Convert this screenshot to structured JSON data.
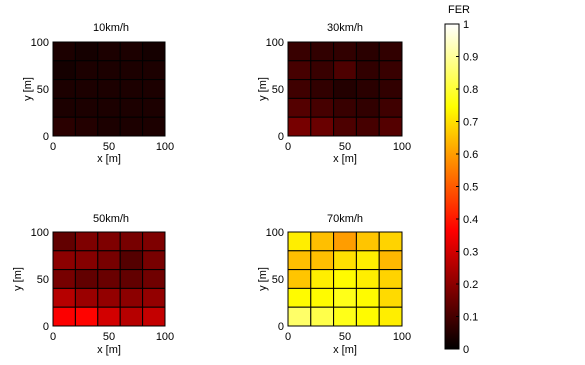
{
  "chart_data": [
    {
      "type": "heatmap",
      "title": "10km/h",
      "xlabel": "x [m]",
      "ylabel": "y [m]",
      "xlim": [
        0,
        100
      ],
      "ylim": [
        0,
        100
      ],
      "xticks": [
        "0",
        "50",
        "100"
      ],
      "yticks": [
        "0",
        "50",
        "100"
      ],
      "grid_values": [
        [
          0.04,
          0.03,
          0.04,
          0.04,
          0.03
        ],
        [
          0.03,
          0.04,
          0.04,
          0.04,
          0.04
        ],
        [
          0.04,
          0.04,
          0.04,
          0.04,
          0.04
        ],
        [
          0.04,
          0.04,
          0.04,
          0.04,
          0.04
        ],
        [
          0.06,
          0.05,
          0.04,
          0.04,
          0.04
        ]
      ]
    },
    {
      "type": "heatmap",
      "title": "30km/h",
      "xlabel": "x [m]",
      "ylabel": "y [m]",
      "xlim": [
        0,
        100
      ],
      "ylim": [
        0,
        100
      ],
      "xticks": [
        "0",
        "50",
        "100"
      ],
      "yticks": [
        "0",
        "50",
        "100"
      ],
      "grid_values": [
        [
          0.08,
          0.07,
          0.07,
          0.06,
          0.07
        ],
        [
          0.1,
          0.08,
          0.11,
          0.07,
          0.08
        ],
        [
          0.09,
          0.07,
          0.05,
          0.06,
          0.07
        ],
        [
          0.12,
          0.1,
          0.08,
          0.07,
          0.09
        ],
        [
          0.17,
          0.15,
          0.11,
          0.1,
          0.12
        ]
      ]
    },
    {
      "type": "heatmap",
      "title": "50km/h",
      "xlabel": "x [m]",
      "ylabel": "y [m]",
      "xlim": [
        0,
        100
      ],
      "ylim": [
        0,
        100
      ],
      "xticks": [
        "0",
        "50",
        "100"
      ],
      "yticks": [
        "0",
        "50",
        "100"
      ],
      "grid_values": [
        [
          0.14,
          0.18,
          0.18,
          0.17,
          0.18
        ],
        [
          0.2,
          0.19,
          0.17,
          0.12,
          0.17
        ],
        [
          0.17,
          0.14,
          0.15,
          0.14,
          0.16
        ],
        [
          0.26,
          0.22,
          0.21,
          0.2,
          0.21
        ],
        [
          0.36,
          0.37,
          0.3,
          0.26,
          0.28
        ]
      ]
    },
    {
      "type": "heatmap",
      "title": "70km/h",
      "xlabel": "x [m]",
      "ylabel": "y [m]",
      "xlim": [
        0,
        100
      ],
      "ylim": [
        0,
        100
      ],
      "xticks": [
        "0",
        "50",
        "100"
      ],
      "yticks": [
        "0",
        "50",
        "100"
      ],
      "grid_values": [
        [
          0.72,
          0.65,
          0.6,
          0.66,
          0.68
        ],
        [
          0.65,
          0.65,
          0.7,
          0.72,
          0.64
        ],
        [
          0.66,
          0.72,
          0.74,
          0.72,
          0.68
        ],
        [
          0.74,
          0.74,
          0.77,
          0.74,
          0.69
        ],
        [
          0.85,
          0.82,
          0.77,
          0.74,
          0.72
        ]
      ]
    }
  ],
  "colorbar": {
    "label": "FER",
    "colormap": "hot",
    "range": [
      0,
      1
    ],
    "ticks": [
      "0",
      "0.1",
      "0.2",
      "0.3",
      "0.4",
      "0.5",
      "0.6",
      "0.7",
      "0.8",
      "0.9",
      "1"
    ]
  }
}
